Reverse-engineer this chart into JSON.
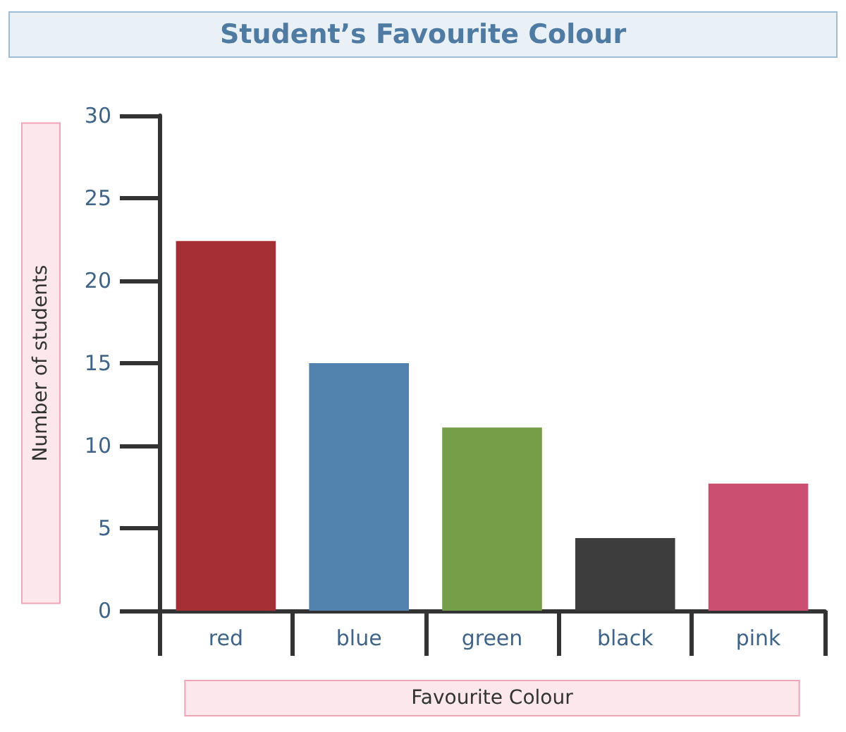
{
  "chart_data": {
    "type": "bar",
    "title": "Student’s Favourite Colour",
    "xlabel": "Favourite Colour",
    "ylabel": "Number of students",
    "categories": [
      "red",
      "blue",
      "green",
      "black",
      "pink"
    ],
    "values": [
      22.4,
      15,
      11.1,
      4.4,
      7.7
    ],
    "colors": [
      "#a62e35",
      "#5283ae",
      "#749e47",
      "#3d3d3d",
      "#cb4f70"
    ],
    "ylim": [
      0,
      30
    ],
    "yticks": [
      0,
      5,
      10,
      15,
      20,
      25,
      30
    ],
    "grid": false
  }
}
